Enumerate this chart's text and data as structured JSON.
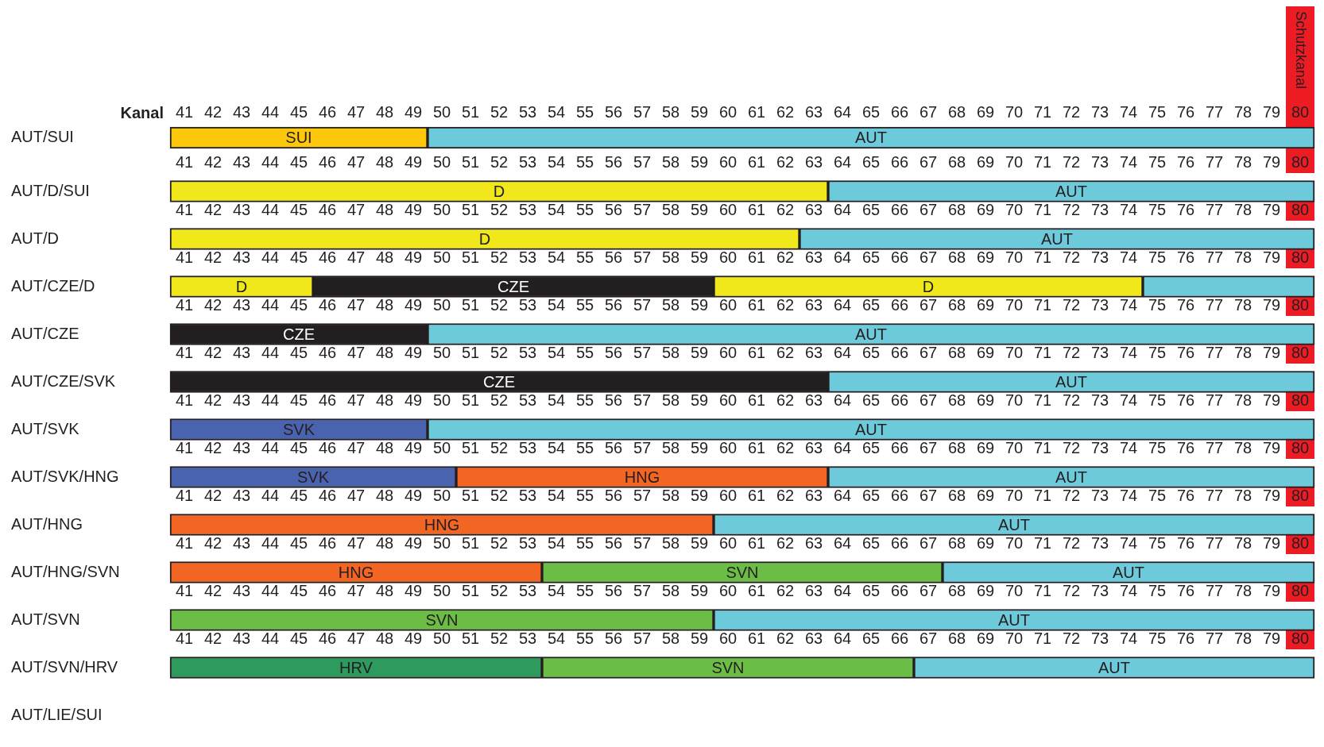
{
  "chart_data": [
    {
      "type": "bar",
      "orientation": "horizontal",
      "categories": [
        "AUT/SUI"
      ],
      "xlim": [
        40.5,
        80.5
      ],
      "xticks": [
        41,
        42,
        43,
        44,
        45,
        46,
        47,
        48,
        49,
        50,
        51,
        52,
        53,
        54,
        55,
        56,
        57,
        58,
        59,
        60,
        61,
        62,
        63,
        64,
        65,
        66,
        67,
        68,
        69,
        70,
        71,
        72,
        73,
        74,
        75,
        76,
        77,
        78,
        79,
        80
      ],
      "x2label": "Kanal",
      "x2lim": [
        40.5,
        80.5
      ],
      "x2ticks": [
        41,
        42,
        43,
        44,
        45,
        46,
        47,
        48,
        49,
        50,
        51,
        52,
        53,
        54,
        55,
        56,
        57,
        58,
        59,
        60,
        61,
        62,
        63,
        64,
        65,
        66,
        67,
        68,
        69,
        70,
        71,
        72,
        73,
        74,
        75,
        76,
        77,
        78,
        79,
        80
      ],
      "bands": [
        {
          "axis": "x",
          "from": 79.5,
          "to": 80.5,
          "label": "Schutzkanal",
          "color": "#ed1c24"
        }
      ],
      "series": [
        {
          "base": [
            40.5
          ],
          "values": [
            9
          ],
          "color": "#fdc70c",
          "value_labels": [
            "SUI"
          ]
        },
        {
          "base": [
            49.5
          ],
          "values": [
            31
          ],
          "color": "#6ccadb",
          "value_labels": [
            "AUT"
          ]
        }
      ]
    },
    {
      "type": "bar",
      "orientation": "horizontal",
      "categories": [
        "AUT/D/SUI"
      ],
      "xlim": [
        40.5,
        80.5
      ],
      "xticks": [
        41,
        42,
        43,
        44,
        45,
        46,
        47,
        48,
        49,
        50,
        51,
        52,
        53,
        54,
        55,
        56,
        57,
        58,
        59,
        60,
        61,
        62,
        63,
        64,
        65,
        66,
        67,
        68,
        69,
        70,
        71,
        72,
        73,
        74,
        75,
        76,
        77,
        78,
        79,
        80
      ],
      "bands": [
        {
          "axis": "x",
          "from": 79.5,
          "to": 80.5,
          "color": "#ed1c24"
        }
      ],
      "series": [
        {
          "base": [
            40.5
          ],
          "values": [
            23
          ],
          "color": "#f0e81a",
          "value_labels": [
            "D"
          ]
        },
        {
          "base": [
            63.5
          ],
          "values": [
            17
          ],
          "color": "#6ccadb",
          "value_labels": [
            "AUT"
          ]
        }
      ]
    },
    {
      "type": "bar",
      "orientation": "horizontal",
      "categories": [
        "AUT/D"
      ],
      "xlim": [
        40.5,
        80.5
      ],
      "xticks": [
        41,
        42,
        43,
        44,
        45,
        46,
        47,
        48,
        49,
        50,
        51,
        52,
        53,
        54,
        55,
        56,
        57,
        58,
        59,
        60,
        61,
        62,
        63,
        64,
        65,
        66,
        67,
        68,
        69,
        70,
        71,
        72,
        73,
        74,
        75,
        76,
        77,
        78,
        79,
        80
      ],
      "bands": [
        {
          "axis": "x",
          "from": 79.5,
          "to": 80.5,
          "color": "#ed1c24"
        }
      ],
      "series": [
        {
          "base": [
            40.5
          ],
          "values": [
            22
          ],
          "color": "#f0e81a",
          "value_labels": [
            "D"
          ]
        },
        {
          "base": [
            62.5
          ],
          "values": [
            18
          ],
          "color": "#6ccadb",
          "value_labels": [
            "AUT"
          ]
        }
      ]
    },
    {
      "type": "bar",
      "orientation": "horizontal",
      "categories": [
        "AUT/CZE/D"
      ],
      "xlim": [
        40.5,
        80.5
      ],
      "xticks": [
        41,
        42,
        43,
        44,
        45,
        46,
        47,
        48,
        49,
        50,
        51,
        52,
        53,
        54,
        55,
        56,
        57,
        58,
        59,
        60,
        61,
        62,
        63,
        64,
        65,
        66,
        67,
        68,
        69,
        70,
        71,
        72,
        73,
        74,
        75,
        76,
        77,
        78,
        79,
        80
      ],
      "bands": [
        {
          "axis": "x",
          "from": 79.5,
          "to": 80.5,
          "color": "#ed1c24"
        }
      ],
      "series": [
        {
          "base": [
            40.5
          ],
          "values": [
            5
          ],
          "color": "#f0e81a",
          "value_labels": [
            "D"
          ]
        },
        {
          "base": [
            45.5
          ],
          "values": [
            14
          ],
          "color": "#231f20",
          "value_labels": [
            "CZE"
          ]
        },
        {
          "base": [
            59.5
          ],
          "values": [
            15
          ],
          "color": "#f0e81a",
          "value_labels": [
            "D"
          ]
        },
        {
          "base": [
            74.5
          ],
          "values": [
            6
          ],
          "color": "#6ccadb"
        }
      ]
    },
    {
      "type": "bar",
      "orientation": "horizontal",
      "categories": [
        "AUT/CZE"
      ],
      "xlim": [
        40.5,
        80.5
      ],
      "xticks": [
        41,
        42,
        43,
        44,
        45,
        46,
        47,
        48,
        49,
        50,
        51,
        52,
        53,
        54,
        55,
        56,
        57,
        58,
        59,
        60,
        61,
        62,
        63,
        64,
        65,
        66,
        67,
        68,
        69,
        70,
        71,
        72,
        73,
        74,
        75,
        76,
        77,
        78,
        79,
        80
      ],
      "bands": [
        {
          "axis": "x",
          "from": 79.5,
          "to": 80.5,
          "color": "#ed1c24"
        }
      ],
      "series": [
        {
          "base": [
            40.5
          ],
          "values": [
            9
          ],
          "color": "#231f20",
          "value_labels": [
            "CZE"
          ]
        },
        {
          "base": [
            49.5
          ],
          "values": [
            31
          ],
          "color": "#6ccadb",
          "value_labels": [
            "AUT"
          ]
        }
      ]
    },
    {
      "type": "bar",
      "orientation": "horizontal",
      "categories": [
        "AUT/CZE/SVK"
      ],
      "xlim": [
        40.5,
        80.5
      ],
      "xticks": [
        41,
        42,
        43,
        44,
        45,
        46,
        47,
        48,
        49,
        50,
        51,
        52,
        53,
        54,
        55,
        56,
        57,
        58,
        59,
        60,
        61,
        62,
        63,
        64,
        65,
        66,
        67,
        68,
        69,
        70,
        71,
        72,
        73,
        74,
        75,
        76,
        77,
        78,
        79,
        80
      ],
      "bands": [
        {
          "axis": "x",
          "from": 79.5,
          "to": 80.5,
          "color": "#ed1c24"
        }
      ],
      "series": [
        {
          "base": [
            40.5
          ],
          "values": [
            23
          ],
          "color": "#231f20",
          "value_labels": [
            "CZE"
          ]
        },
        {
          "base": [
            63.5
          ],
          "values": [
            17
          ],
          "color": "#6ccadb",
          "value_labels": [
            "AUT"
          ]
        }
      ]
    },
    {
      "type": "bar",
      "orientation": "horizontal",
      "categories": [
        "AUT/SVK"
      ],
      "xlim": [
        40.5,
        80.5
      ],
      "xticks": [
        41,
        42,
        43,
        44,
        45,
        46,
        47,
        48,
        49,
        50,
        51,
        52,
        53,
        54,
        55,
        56,
        57,
        58,
        59,
        60,
        61,
        62,
        63,
        64,
        65,
        66,
        67,
        68,
        69,
        70,
        71,
        72,
        73,
        74,
        75,
        76,
        77,
        78,
        79,
        80
      ],
      "bands": [
        {
          "axis": "x",
          "from": 79.5,
          "to": 80.5,
          "color": "#ed1c24"
        }
      ],
      "series": [
        {
          "base": [
            40.5
          ],
          "values": [
            9
          ],
          "color": "#4a63ae",
          "value_labels": [
            "SVK"
          ]
        },
        {
          "base": [
            49.5
          ],
          "values": [
            31
          ],
          "color": "#6ccadb",
          "value_labels": [
            "AUT"
          ]
        }
      ]
    },
    {
      "type": "bar",
      "orientation": "horizontal",
      "categories": [
        "AUT/SVK/HNG"
      ],
      "xlim": [
        40.5,
        80.5
      ],
      "xticks": [
        41,
        42,
        43,
        44,
        45,
        46,
        47,
        48,
        49,
        50,
        51,
        52,
        53,
        54,
        55,
        56,
        57,
        58,
        59,
        60,
        61,
        62,
        63,
        64,
        65,
        66,
        67,
        68,
        69,
        70,
        71,
        72,
        73,
        74,
        75,
        76,
        77,
        78,
        79,
        80
      ],
      "bands": [
        {
          "axis": "x",
          "from": 79.5,
          "to": 80.5,
          "color": "#ed1c24"
        }
      ],
      "series": [
        {
          "base": [
            40.5
          ],
          "values": [
            10
          ],
          "color": "#4a63ae",
          "value_labels": [
            "SVK"
          ]
        },
        {
          "base": [
            50.5
          ],
          "values": [
            13
          ],
          "color": "#f26522",
          "value_labels": [
            "HNG"
          ]
        },
        {
          "base": [
            63.5
          ],
          "values": [
            17
          ],
          "color": "#6ccadb",
          "value_labels": [
            "AUT"
          ]
        }
      ]
    },
    {
      "type": "bar",
      "orientation": "horizontal",
      "categories": [
        "AUT/HNG"
      ],
      "xlim": [
        40.5,
        80.5
      ],
      "xticks": [
        41,
        42,
        43,
        44,
        45,
        46,
        47,
        48,
        49,
        50,
        51,
        52,
        53,
        54,
        55,
        56,
        57,
        58,
        59,
        60,
        61,
        62,
        63,
        64,
        65,
        66,
        67,
        68,
        69,
        70,
        71,
        72,
        73,
        74,
        75,
        76,
        77,
        78,
        79,
        80
      ],
      "bands": [
        {
          "axis": "x",
          "from": 79.5,
          "to": 80.5,
          "color": "#ed1c24"
        }
      ],
      "series": [
        {
          "base": [
            40.5
          ],
          "values": [
            19
          ],
          "color": "#f26522",
          "value_labels": [
            "HNG"
          ]
        },
        {
          "base": [
            59.5
          ],
          "values": [
            21
          ],
          "color": "#6ccadb",
          "value_labels": [
            "AUT"
          ]
        }
      ]
    },
    {
      "type": "bar",
      "orientation": "horizontal",
      "categories": [
        "AUT/HNG/SVN"
      ],
      "xlim": [
        40.5,
        80.5
      ],
      "xticks": [
        41,
        42,
        43,
        44,
        45,
        46,
        47,
        48,
        49,
        50,
        51,
        52,
        53,
        54,
        55,
        56,
        57,
        58,
        59,
        60,
        61,
        62,
        63,
        64,
        65,
        66,
        67,
        68,
        69,
        70,
        71,
        72,
        73,
        74,
        75,
        76,
        77,
        78,
        79,
        80
      ],
      "bands": [
        {
          "axis": "x",
          "from": 79.5,
          "to": 80.5,
          "color": "#ed1c24"
        }
      ],
      "series": [
        {
          "base": [
            40.5
          ],
          "values": [
            13
          ],
          "color": "#f26522",
          "value_labels": [
            "HNG"
          ]
        },
        {
          "base": [
            53.5
          ],
          "values": [
            14
          ],
          "color": "#6bbd45",
          "value_labels": [
            "SVN"
          ]
        },
        {
          "base": [
            67.5
          ],
          "values": [
            13
          ],
          "color": "#6ccadb",
          "value_labels": [
            "AUT"
          ]
        }
      ]
    },
    {
      "type": "bar",
      "orientation": "horizontal",
      "categories": [
        "AUT/SVN"
      ],
      "xlim": [
        40.5,
        80.5
      ],
      "xticks": [
        41,
        42,
        43,
        44,
        45,
        46,
        47,
        48,
        49,
        50,
        51,
        52,
        53,
        54,
        55,
        56,
        57,
        58,
        59,
        60,
        61,
        62,
        63,
        64,
        65,
        66,
        67,
        68,
        69,
        70,
        71,
        72,
        73,
        74,
        75,
        76,
        77,
        78,
        79,
        80
      ],
      "bands": [
        {
          "axis": "x",
          "from": 79.5,
          "to": 80.5,
          "color": "#ed1c24"
        }
      ],
      "series": [
        {
          "base": [
            40.5
          ],
          "values": [
            19
          ],
          "color": "#6bbd45",
          "value_labels": [
            "SVN"
          ]
        },
        {
          "base": [
            59.5
          ],
          "values": [
            21
          ],
          "color": "#6ccadb",
          "value_labels": [
            "AUT"
          ]
        }
      ]
    },
    {
      "type": "bar",
      "orientation": "horizontal",
      "categories": [
        "AUT/SVN/HRV"
      ],
      "xlim": [
        40.5,
        80.5
      ],
      "tick_labels": "y",
      "series": [
        {
          "base": [
            40.5
          ],
          "values": [
            13
          ],
          "color": "#2e9a5e",
          "value_labels": [
            "HRV"
          ]
        },
        {
          "base": [
            53.5
          ],
          "values": [
            13
          ],
          "color": "#6bbd45",
          "value_labels": [
            "SVN"
          ]
        },
        {
          "base": [
            66.5
          ],
          "values": [
            14
          ],
          "color": "#6ccadb",
          "value_labels": [
            "AUT"
          ]
        }
      ]
    },
    {
      "type": "other",
      "categories": [
        "AUT/LIE/SUI"
      ]
    }
  ]
}
